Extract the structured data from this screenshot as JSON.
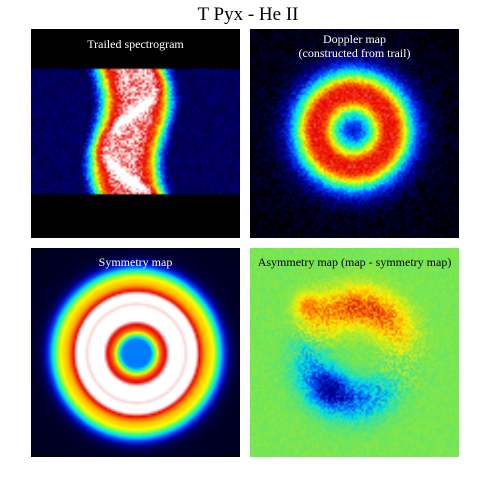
{
  "title": "T Pyx - He II",
  "panels": [
    {
      "label": "Trailed spectrogram"
    },
    {
      "label_line1": "Doppler map",
      "label_line2": "(constructed from trail)"
    },
    {
      "label": "Symmetry map"
    },
    {
      "label": "Asymmetry map (map - symmetry map)"
    }
  ],
  "colors": {
    "background": "#ffffff",
    "colormap": "jet"
  }
}
